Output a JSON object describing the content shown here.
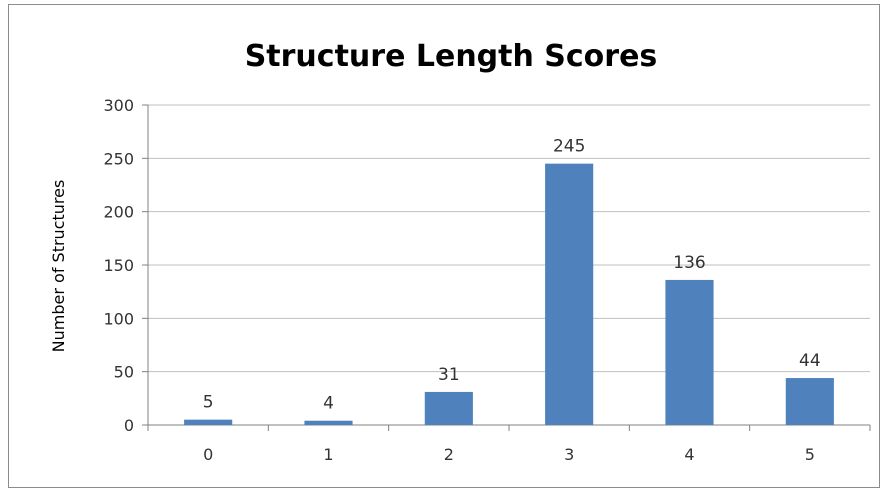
{
  "chart_data": {
    "type": "bar",
    "title": "Structure Length Scores",
    "xlabel": "",
    "ylabel": "Number of Structures",
    "categories": [
      "0",
      "1",
      "2",
      "3",
      "4",
      "5"
    ],
    "values": [
      5,
      4,
      31,
      245,
      136,
      44
    ],
    "data_labels": [
      "5",
      "4",
      "31",
      "245",
      "136",
      "44"
    ],
    "ylim": [
      0,
      300
    ],
    "yticks": [
      "0",
      "50",
      "100",
      "150",
      "200",
      "250",
      "300"
    ],
    "bar_color": "#4f81bd",
    "grid": true,
    "legend": "none"
  }
}
